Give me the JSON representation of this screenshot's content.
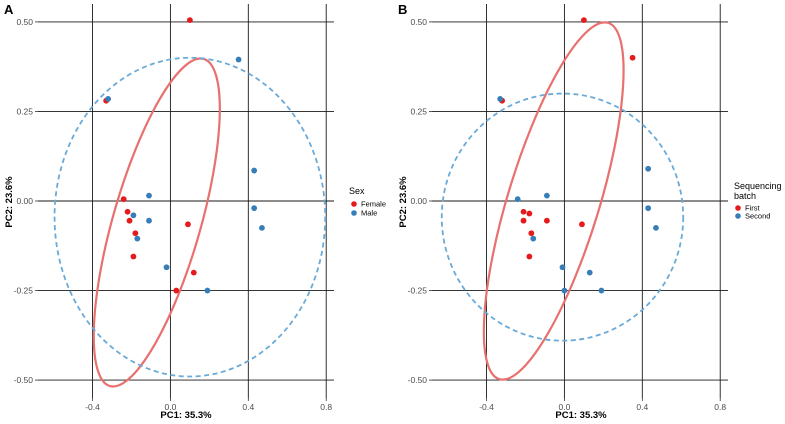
{
  "colors": {
    "red": "#e41a1c",
    "blue": "#377eb8",
    "ellipse_red": "#e8706e",
    "ellipse_blue": "#6aaad8",
    "grid": "#1a1a1a"
  },
  "chart_data": [
    {
      "panel": "A",
      "type": "scatter",
      "xlabel": "PC1: 35.3%",
      "ylabel": "PC2: 23.6%",
      "xlim": [
        -0.68,
        0.84
      ],
      "ylim": [
        -0.55,
        0.55
      ],
      "x_ticks": [
        -0.4,
        0.0,
        0.4,
        0.8
      ],
      "x_tick_labels": [
        "-0.4",
        "0.0",
        "0.4",
        "0.8"
      ],
      "y_ticks": [
        -0.5,
        -0.25,
        0.0,
        0.25,
        0.5
      ],
      "y_tick_labels": [
        "-0.50",
        "-0.25",
        "0.00",
        "0.25",
        "0.50"
      ],
      "grid": true,
      "legend": {
        "title": [
          "Sex"
        ],
        "placement": "right"
      },
      "series": [
        {
          "name": "Female",
          "color": "#e41a1c",
          "points": [
            [
              0.1,
              0.505
            ],
            [
              -0.33,
              0.28
            ],
            [
              -0.24,
              0.005
            ],
            [
              -0.22,
              -0.03
            ],
            [
              -0.21,
              -0.055
            ],
            [
              -0.18,
              -0.09
            ],
            [
              -0.19,
              -0.155
            ],
            [
              0.09,
              -0.065
            ],
            [
              0.12,
              -0.2
            ],
            [
              0.03,
              -0.25
            ]
          ]
        },
        {
          "name": "Male",
          "color": "#377eb8",
          "points": [
            [
              0.35,
              0.395
            ],
            [
              -0.32,
              0.285
            ],
            [
              -0.11,
              0.015
            ],
            [
              -0.11,
              -0.055
            ],
            [
              -0.17,
              -0.105
            ],
            [
              -0.19,
              -0.04
            ],
            [
              -0.02,
              -0.185
            ],
            [
              0.19,
              -0.25
            ],
            [
              0.43,
              0.085
            ],
            [
              0.43,
              -0.02
            ],
            [
              0.47,
              -0.075
            ]
          ]
        }
      ],
      "ellipses": [
        {
          "group": "Female",
          "style": "solid",
          "cx": -0.07,
          "cy": -0.06,
          "rx": 0.225,
          "ry": 0.475,
          "angle": 16
        },
        {
          "group": "Male",
          "style": "dashed",
          "cx": 0.1,
          "cy": -0.045,
          "rx": 0.695,
          "ry": 0.445,
          "angle": 0
        }
      ]
    },
    {
      "panel": "B",
      "type": "scatter",
      "xlabel": "PC1: 35.3%",
      "ylabel": "PC2: 23.6%",
      "xlim": [
        -0.68,
        0.84
      ],
      "ylim": [
        -0.55,
        0.55
      ],
      "x_ticks": [
        -0.4,
        0.0,
        0.4,
        0.8
      ],
      "x_tick_labels": [
        "-0.4",
        "0.0",
        "0.4",
        "0.8"
      ],
      "y_ticks": [
        -0.5,
        -0.25,
        0.0,
        0.25,
        0.5
      ],
      "y_tick_labels": [
        "-0.50",
        "-0.25",
        "0.00",
        "0.25",
        "0.50"
      ],
      "grid": true,
      "legend": {
        "title": [
          "Sequencing",
          "batch"
        ],
        "placement": "right"
      },
      "series": [
        {
          "name": "First",
          "color": "#e41a1c",
          "points": [
            [
              0.1,
              0.505
            ],
            [
              0.35,
              0.4
            ],
            [
              -0.32,
              0.28
            ],
            [
              -0.21,
              -0.03
            ],
            [
              -0.21,
              -0.055
            ],
            [
              -0.18,
              -0.035
            ],
            [
              -0.18,
              -0.155
            ],
            [
              -0.17,
              -0.09
            ],
            [
              -0.09,
              -0.055
            ],
            [
              0.09,
              -0.065
            ]
          ]
        },
        {
          "name": "Second",
          "color": "#377eb8",
          "points": [
            [
              -0.33,
              0.285
            ],
            [
              -0.24,
              0.005
            ],
            [
              -0.09,
              0.015
            ],
            [
              -0.16,
              -0.105
            ],
            [
              -0.01,
              -0.185
            ],
            [
              0.0,
              -0.25
            ],
            [
              0.13,
              -0.2
            ],
            [
              0.19,
              -0.25
            ],
            [
              0.43,
              0.09
            ],
            [
              0.43,
              -0.02
            ],
            [
              0.47,
              -0.075
            ]
          ]
        }
      ],
      "ellipses": [
        {
          "group": "First",
          "style": "solid",
          "cx": -0.055,
          "cy": 0.0,
          "rx": 0.235,
          "ry": 0.52,
          "angle": 17
        },
        {
          "group": "Second",
          "style": "dashed",
          "cx": -0.01,
          "cy": -0.045,
          "rx": 0.62,
          "ry": 0.345,
          "angle": 0
        }
      ]
    }
  ]
}
